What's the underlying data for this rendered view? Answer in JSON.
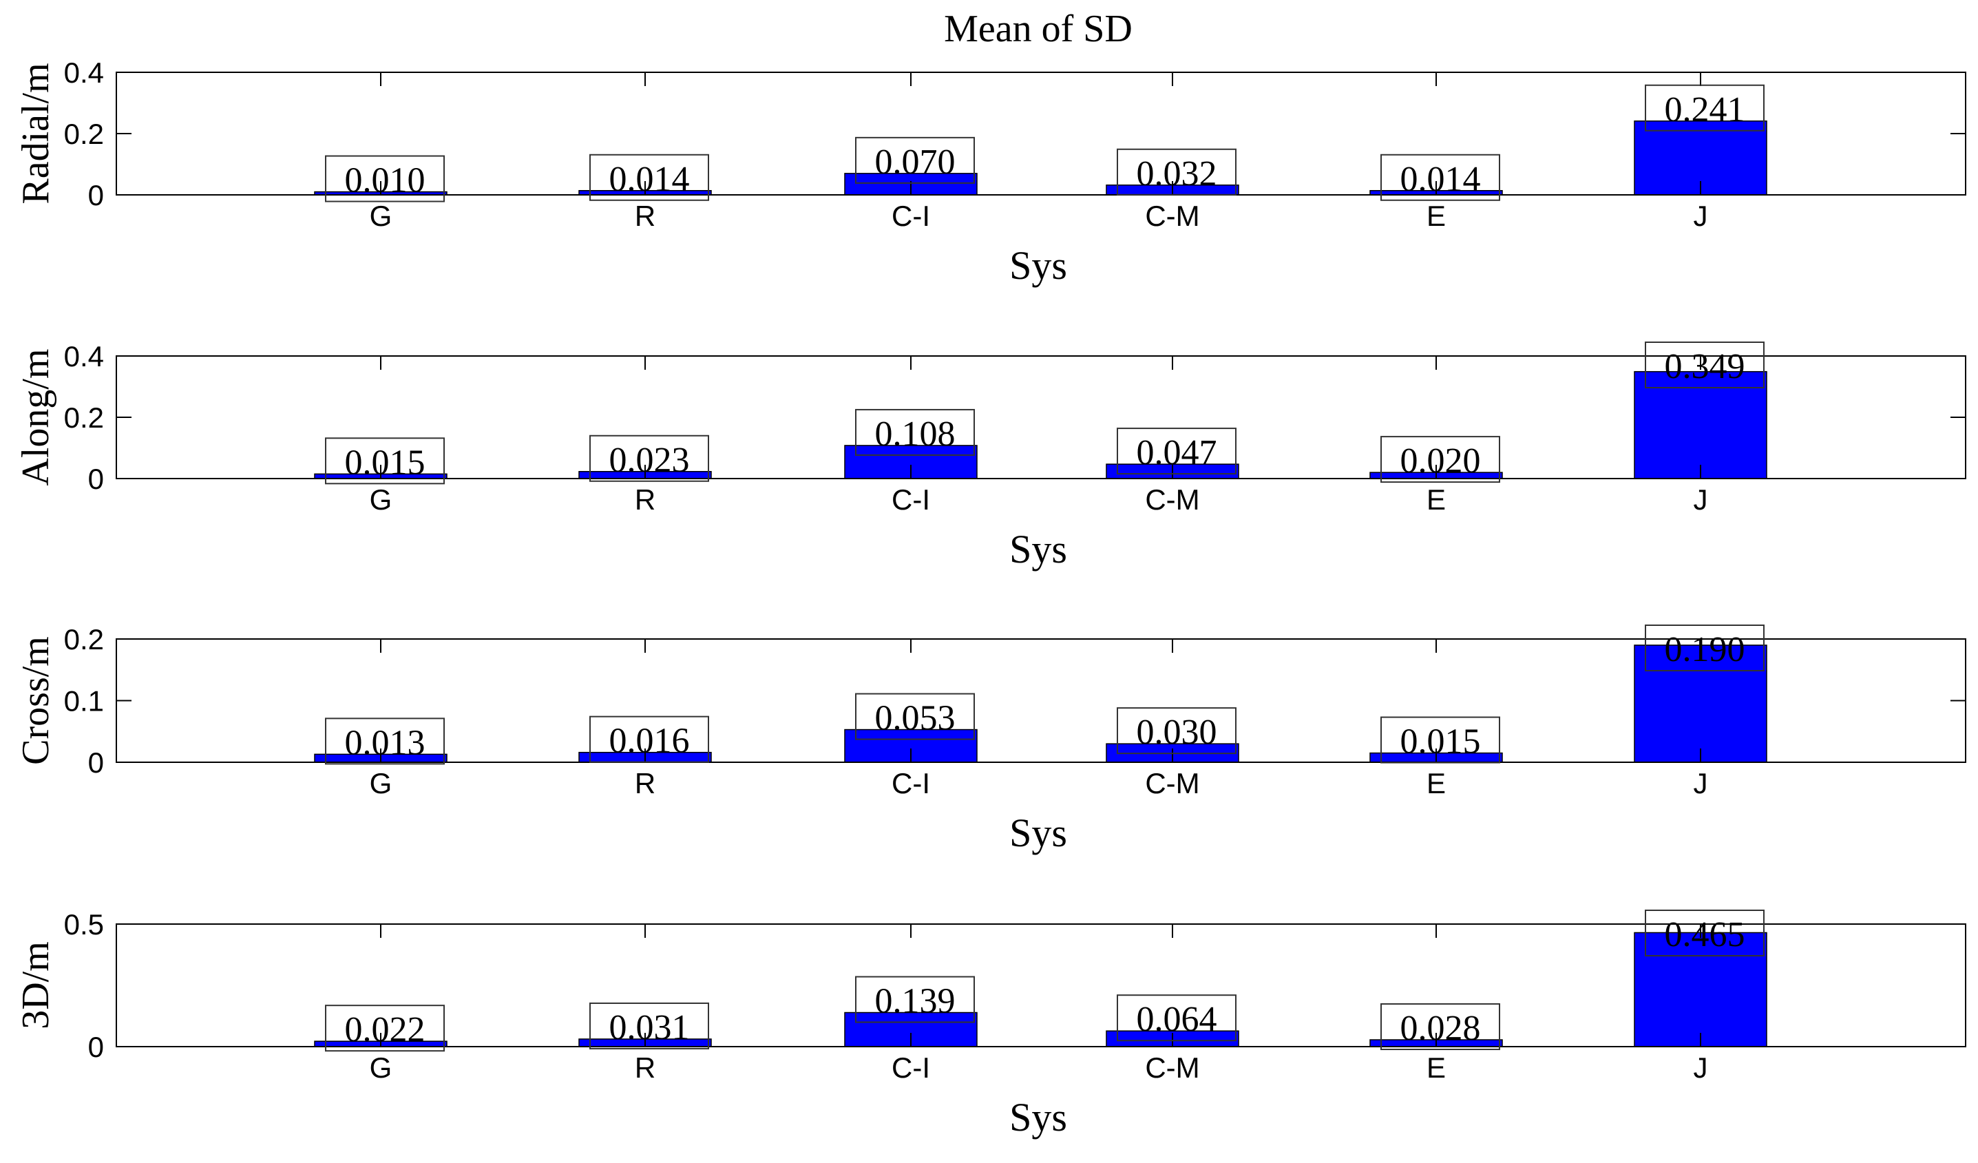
{
  "title": "Mean of SD",
  "bar_color": "#0000FF",
  "chart_data": [
    {
      "type": "bar",
      "ylabel": "Radial/m",
      "xlabel": "Sys",
      "categories": [
        "G",
        "R",
        "C-I",
        "C-M",
        "E",
        "J"
      ],
      "values": [
        0.01,
        0.014,
        0.07,
        0.032,
        0.014,
        0.241
      ],
      "value_labels": [
        "0.010",
        "0.014",
        "0.070",
        "0.032",
        "0.014",
        "0.241"
      ],
      "ylim": [
        0,
        0.4
      ],
      "yticks": [
        0,
        0.2,
        0.4
      ],
      "ytick_labels": [
        "0",
        "0.2",
        "0.4"
      ]
    },
    {
      "type": "bar",
      "ylabel": "Along/m",
      "xlabel": "Sys",
      "categories": [
        "G",
        "R",
        "C-I",
        "C-M",
        "E",
        "J"
      ],
      "values": [
        0.015,
        0.023,
        0.108,
        0.047,
        0.02,
        0.349
      ],
      "value_labels": [
        "0.015",
        "0.023",
        "0.108",
        "0.047",
        "0.020",
        "0.349"
      ],
      "ylim": [
        0,
        0.4
      ],
      "yticks": [
        0,
        0.2,
        0.4
      ],
      "ytick_labels": [
        "0",
        "0.2",
        "0.4"
      ]
    },
    {
      "type": "bar",
      "ylabel": "Cross/m",
      "xlabel": "Sys",
      "categories": [
        "G",
        "R",
        "C-I",
        "C-M",
        "E",
        "J"
      ],
      "values": [
        0.013,
        0.016,
        0.053,
        0.03,
        0.015,
        0.19
      ],
      "value_labels": [
        "0.013",
        "0.016",
        "0.053",
        "0.030",
        "0.015",
        "0.190"
      ],
      "ylim": [
        0,
        0.2
      ],
      "yticks": [
        0,
        0.1,
        0.2
      ],
      "ytick_labels": [
        "0",
        "0.1",
        "0.2"
      ]
    },
    {
      "type": "bar",
      "ylabel": "3D/m",
      "xlabel": "Sys",
      "categories": [
        "G",
        "R",
        "C-I",
        "C-M",
        "E",
        "J"
      ],
      "values": [
        0.022,
        0.031,
        0.139,
        0.064,
        0.028,
        0.465
      ],
      "value_labels": [
        "0.022",
        "0.031",
        "0.139",
        "0.064",
        "0.028",
        "0.465"
      ],
      "ylim": [
        0,
        0.5
      ],
      "yticks": [
        0,
        0.5
      ],
      "ytick_labels": [
        "0",
        "0.5"
      ]
    }
  ]
}
